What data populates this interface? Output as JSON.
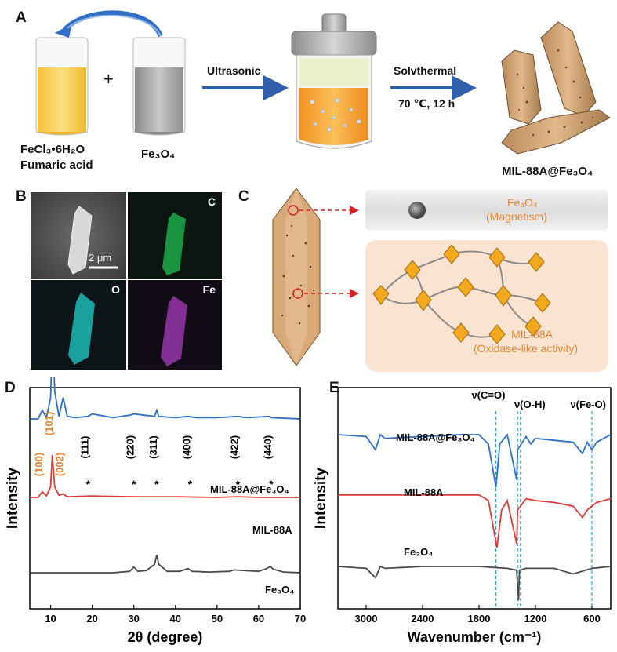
{
  "panels": {
    "a": "A",
    "b": "B",
    "c": "C",
    "d": "D",
    "e": "E"
  },
  "panelA": {
    "reagent1_line1": "FeCl₃•6H₂O",
    "reagent1_line2": "Fumaric acid",
    "plus": "+",
    "reagent2": "Fe₃O₄",
    "step1": "Ultrasonic",
    "step2": "Solvthermal",
    "condition": "70 ℃, 12 h",
    "product": "MIL-88A@Fe₃O₄"
  },
  "panelB": {
    "scale_bar": "2 μm",
    "maps": [
      "C",
      "O",
      "Fe"
    ]
  },
  "panelC": {
    "top_line1": "Fe₃O₄",
    "top_line2": "(Magnetism)",
    "bottom_line1": "MIL-88A",
    "bottom_line2": "(Oxidase-like activity)"
  },
  "colors": {
    "blue": "#2f6fc7",
    "red": "#e03a3a",
    "gray": "#4a4a4a",
    "orange": "#e8862d",
    "cyan": "#27a9d6"
  },
  "chart_data": [
    {
      "type": "line",
      "xlabel": "2θ (degree)",
      "ylabel": "Intensity",
      "xlim": [
        5,
        70
      ],
      "xticks": [
        10,
        20,
        30,
        40,
        50,
        60,
        70
      ],
      "series": [
        {
          "name": "MIL-88A@Fe₃O₄",
          "x": [
            5,
            7,
            8,
            9,
            10,
            10.5,
            11,
            12,
            13,
            14,
            16,
            19,
            20,
            25,
            29,
            30,
            35,
            35.5,
            36,
            40,
            43,
            45,
            50,
            55,
            57,
            62.5,
            63,
            70
          ],
          "y": [
            0.28,
            0.28,
            0.35,
            0.29,
            0.45,
            1.0,
            0.5,
            0.3,
            0.45,
            0.3,
            0.29,
            0.3,
            0.32,
            0.29,
            0.31,
            0.32,
            0.3,
            0.35,
            0.3,
            0.29,
            0.3,
            0.29,
            0.29,
            0.3,
            0.29,
            0.3,
            0.29,
            0.28
          ]
        },
        {
          "name": "MIL-88A",
          "x": [
            5,
            7,
            8,
            9,
            10,
            10.4,
            11,
            12,
            13,
            14,
            20,
            30,
            40,
            50,
            55,
            60,
            70
          ],
          "y": [
            0.0,
            0.0,
            0.08,
            0.02,
            0.15,
            0.6,
            0.15,
            0.03,
            0.05,
            0.01,
            0.02,
            0.01,
            0.01,
            0.0,
            0.01,
            0.0,
            0.0
          ]
        },
        {
          "name": "Fe₃O₄",
          "x": [
            5,
            15,
            25,
            29,
            30,
            31,
            33,
            35,
            35.5,
            36,
            38,
            41,
            43,
            44,
            48,
            53,
            54,
            57,
            60,
            62,
            62.8,
            63.5,
            66,
            70
          ],
          "y": [
            0.0,
            0.0,
            0.0,
            0.02,
            0.08,
            0.02,
            0.03,
            0.12,
            0.25,
            0.12,
            0.02,
            0.02,
            0.06,
            0.02,
            0.01,
            0.02,
            0.04,
            0.03,
            0.02,
            0.06,
            0.09,
            0.05,
            0.01,
            0.0
          ]
        }
      ],
      "peak_labels_orange": [
        "(100)",
        "(101)",
        "(002)"
      ],
      "peak_labels_black": [
        "(111)",
        "(220)",
        "(311)",
        "(400)",
        "(422)",
        "(440)"
      ]
    },
    {
      "type": "line",
      "xlabel": "Wavenumber (cm⁻¹)",
      "ylabel": "Intensity",
      "xlim": [
        3300,
        400
      ],
      "xticks": [
        3000,
        2400,
        1800,
        1200,
        600
      ],
      "annotations": [
        "ν(C=O)",
        "ν(O-H)",
        "ν(Fe-O)"
      ],
      "series": [
        {
          "name": "MIL-88A@Fe₃O₄",
          "x": [
            3300,
            3000,
            2900,
            2850,
            2800,
            2400,
            2000,
            1800,
            1700,
            1620,
            1580,
            1500,
            1400,
            1390,
            1300,
            1250,
            1200,
            1000,
            800,
            700,
            650,
            600,
            550,
            400
          ],
          "y": [
            0.9,
            0.89,
            0.82,
            0.9,
            0.88,
            0.89,
            0.9,
            0.9,
            0.85,
            0.62,
            0.85,
            0.9,
            0.66,
            0.82,
            0.89,
            0.85,
            0.88,
            0.87,
            0.86,
            0.8,
            0.86,
            0.82,
            0.86,
            0.9
          ]
        },
        {
          "name": "MIL-88A",
          "x": [
            3300,
            2400,
            2000,
            1800,
            1700,
            1610,
            1560,
            1500,
            1400,
            1390,
            1300,
            1200,
            1000,
            800,
            700,
            650,
            600,
            550,
            400
          ],
          "y": [
            0.58,
            0.58,
            0.58,
            0.58,
            0.55,
            0.3,
            0.5,
            0.55,
            0.32,
            0.5,
            0.56,
            0.55,
            0.54,
            0.52,
            0.46,
            0.5,
            0.52,
            0.54,
            0.56
          ]
        },
        {
          "name": "Fe₃O₄",
          "x": [
            3300,
            3000,
            2900,
            2850,
            2800,
            2400,
            1800,
            1500,
            1400,
            1380,
            1370,
            1300,
            1000,
            800,
            600,
            400
          ],
          "y": [
            0.2,
            0.19,
            0.14,
            0.2,
            0.19,
            0.2,
            0.2,
            0.19,
            0.18,
            0.02,
            0.18,
            0.19,
            0.19,
            0.16,
            0.19,
            0.2
          ]
        }
      ]
    }
  ]
}
